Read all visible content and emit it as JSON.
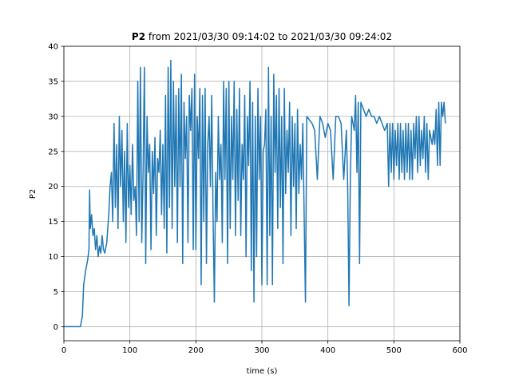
{
  "chart_data": {
    "type": "line",
    "title": {
      "bold": "P2",
      "rest": " from 2021/03/30 09:14:02 to 2021/03/30 09:24:02"
    },
    "xlabel": "time (s)",
    "ylabel": "P2",
    "xlim": [
      0,
      600
    ],
    "ylim": [
      -2,
      40
    ],
    "xticks": [
      0,
      100,
      200,
      300,
      400,
      500,
      600
    ],
    "yticks": [
      0,
      5,
      10,
      15,
      20,
      25,
      30,
      35,
      40
    ],
    "grid": true,
    "series": [
      {
        "color": "#1f77b4",
        "points": [
          [
            0,
            0
          ],
          [
            10,
            0
          ],
          [
            20,
            0
          ],
          [
            25,
            0
          ],
          [
            28,
            1.5
          ],
          [
            30,
            6
          ],
          [
            33,
            8
          ],
          [
            36,
            9.5
          ],
          [
            38,
            11
          ],
          [
            39,
            19.5
          ],
          [
            40,
            14
          ],
          [
            42,
            16
          ],
          [
            44,
            13
          ],
          [
            46,
            14
          ],
          [
            48,
            11
          ],
          [
            50,
            13
          ],
          [
            52,
            10
          ],
          [
            54,
            11.5
          ],
          [
            56,
            10.5
          ],
          [
            58,
            13
          ],
          [
            60,
            11
          ],
          [
            62,
            10.5
          ],
          [
            65,
            12
          ],
          [
            68,
            16
          ],
          [
            70,
            20
          ],
          [
            72,
            22
          ],
          [
            74,
            15
          ],
          [
            76,
            29
          ],
          [
            78,
            17
          ],
          [
            80,
            26
          ],
          [
            82,
            14
          ],
          [
            84,
            30
          ],
          [
            86,
            20
          ],
          [
            88,
            28
          ],
          [
            90,
            15
          ],
          [
            92,
            25
          ],
          [
            94,
            12
          ],
          [
            96,
            29
          ],
          [
            98,
            17
          ],
          [
            100,
            23
          ],
          [
            102,
            16
          ],
          [
            104,
            26
          ],
          [
            106,
            18
          ],
          [
            108,
            20
          ],
          [
            110,
            13
          ],
          [
            112,
            35
          ],
          [
            114,
            15
          ],
          [
            116,
            37
          ],
          [
            118,
            12
          ],
          [
            120,
            22
          ],
          [
            122,
            37
          ],
          [
            124,
            9
          ],
          [
            126,
            30
          ],
          [
            128,
            22
          ],
          [
            130,
            26
          ],
          [
            132,
            11
          ],
          [
            134,
            25
          ],
          [
            136,
            19
          ],
          [
            138,
            27
          ],
          [
            140,
            13
          ],
          [
            142,
            24
          ],
          [
            144,
            22
          ],
          [
            146,
            28
          ],
          [
            148,
            16
          ],
          [
            150,
            26
          ],
          [
            152,
            14
          ],
          [
            154,
            33
          ],
          [
            156,
            10.5
          ],
          [
            158,
            37
          ],
          [
            160,
            17
          ],
          [
            162,
            38
          ],
          [
            164,
            14
          ],
          [
            166,
            35
          ],
          [
            168,
            20
          ],
          [
            170,
            33
          ],
          [
            172,
            12
          ],
          [
            174,
            34
          ],
          [
            176,
            20
          ],
          [
            178,
            36
          ],
          [
            180,
            9
          ],
          [
            182,
            32
          ],
          [
            184,
            24
          ],
          [
            186,
            30
          ],
          [
            188,
            12
          ],
          [
            190,
            33
          ],
          [
            192,
            28
          ],
          [
            194,
            34
          ],
          [
            196,
            11
          ],
          [
            198,
            36
          ],
          [
            200,
            11
          ],
          [
            202,
            30
          ],
          [
            204,
            24
          ],
          [
            206,
            34
          ],
          [
            208,
            6
          ],
          [
            210,
            33
          ],
          [
            212,
            15
          ],
          [
            214,
            34
          ],
          [
            216,
            9
          ],
          [
            218,
            26
          ],
          [
            220,
            30
          ],
          [
            222,
            20
          ],
          [
            224,
            33
          ],
          [
            226,
            16
          ],
          [
            228,
            3.5
          ],
          [
            230,
            22
          ],
          [
            232,
            15
          ],
          [
            234,
            30
          ],
          [
            236,
            21
          ],
          [
            238,
            26
          ],
          [
            240,
            12
          ],
          [
            242,
            35
          ],
          [
            244,
            21
          ],
          [
            246,
            34
          ],
          [
            248,
            9
          ],
          [
            250,
            35
          ],
          [
            252,
            14
          ],
          [
            254,
            30
          ],
          [
            256,
            21
          ],
          [
            258,
            35
          ],
          [
            260,
            13
          ],
          [
            262,
            31
          ],
          [
            264,
            18
          ],
          [
            266,
            34
          ],
          [
            268,
            13
          ],
          [
            270,
            26
          ],
          [
            272,
            21
          ],
          [
            274,
            33
          ],
          [
            276,
            10
          ],
          [
            278,
            30
          ],
          [
            280,
            23
          ],
          [
            282,
            35
          ],
          [
            284,
            8
          ],
          [
            286,
            32
          ],
          [
            288,
            3.5
          ],
          [
            290,
            30
          ],
          [
            292,
            10
          ],
          [
            294,
            34
          ],
          [
            296,
            21
          ],
          [
            298,
            30
          ],
          [
            300,
            6
          ],
          [
            302,
            25
          ],
          [
            304,
            26
          ],
          [
            306,
            31
          ],
          [
            308,
            6
          ],
          [
            310,
            37
          ],
          [
            312,
            13
          ],
          [
            314,
            30
          ],
          [
            316,
            6
          ],
          [
            318,
            36
          ],
          [
            320,
            22
          ],
          [
            322,
            33
          ],
          [
            324,
            14
          ],
          [
            326,
            34
          ],
          [
            328,
            17
          ],
          [
            330,
            30
          ],
          [
            332,
            9
          ],
          [
            334,
            34
          ],
          [
            336,
            19
          ],
          [
            338,
            28
          ],
          [
            340,
            22
          ],
          [
            342,
            32
          ],
          [
            344,
            13
          ],
          [
            346,
            30
          ],
          [
            348,
            20
          ],
          [
            350,
            29
          ],
          [
            352,
            14
          ],
          [
            354,
            31
          ],
          [
            356,
            19
          ],
          [
            358,
            26
          ],
          [
            360,
            21
          ],
          [
            362,
            29
          ],
          [
            364,
            16
          ],
          [
            366,
            3.5
          ],
          [
            368,
            30
          ],
          [
            372,
            29.5
          ],
          [
            376,
            29
          ],
          [
            380,
            28
          ],
          [
            384,
            21
          ],
          [
            388,
            30
          ],
          [
            392,
            29
          ],
          [
            396,
            27
          ],
          [
            400,
            29
          ],
          [
            404,
            28
          ],
          [
            408,
            21
          ],
          [
            412,
            30
          ],
          [
            416,
            30
          ],
          [
            420,
            29
          ],
          [
            424,
            21
          ],
          [
            428,
            28
          ],
          [
            430,
            20
          ],
          [
            432,
            3
          ],
          [
            434,
            21
          ],
          [
            436,
            30
          ],
          [
            440,
            28
          ],
          [
            442,
            33
          ],
          [
            444,
            22
          ],
          [
            446,
            32
          ],
          [
            448,
            9
          ],
          [
            450,
            32
          ],
          [
            454,
            31
          ],
          [
            458,
            30
          ],
          [
            462,
            31
          ],
          [
            466,
            30
          ],
          [
            470,
            30
          ],
          [
            474,
            29
          ],
          [
            478,
            30
          ],
          [
            482,
            29
          ],
          [
            486,
            28
          ],
          [
            490,
            29
          ],
          [
            492,
            20
          ],
          [
            494,
            29
          ],
          [
            496,
            22
          ],
          [
            498,
            29
          ],
          [
            500,
            21
          ],
          [
            502,
            28
          ],
          [
            504,
            23
          ],
          [
            506,
            29
          ],
          [
            508,
            21
          ],
          [
            510,
            29
          ],
          [
            512,
            22
          ],
          [
            514,
            28
          ],
          [
            516,
            21
          ],
          [
            518,
            29
          ],
          [
            520,
            22
          ],
          [
            522,
            29
          ],
          [
            524,
            21
          ],
          [
            526,
            28
          ],
          [
            528,
            21
          ],
          [
            530,
            29
          ],
          [
            532,
            24
          ],
          [
            534,
            30
          ],
          [
            536,
            22
          ],
          [
            538,
            30
          ],
          [
            540,
            23
          ],
          [
            542,
            28
          ],
          [
            544,
            24
          ],
          [
            546,
            30
          ],
          [
            548,
            22
          ],
          [
            550,
            29
          ],
          [
            552,
            21
          ],
          [
            554,
            28
          ],
          [
            556,
            27
          ],
          [
            558,
            26
          ],
          [
            560,
            28
          ],
          [
            562,
            26
          ],
          [
            564,
            31
          ],
          [
            566,
            23
          ],
          [
            568,
            32
          ],
          [
            570,
            23
          ],
          [
            572,
            32
          ],
          [
            574,
            30
          ],
          [
            576,
            32
          ],
          [
            578,
            29
          ]
        ]
      }
    ]
  }
}
